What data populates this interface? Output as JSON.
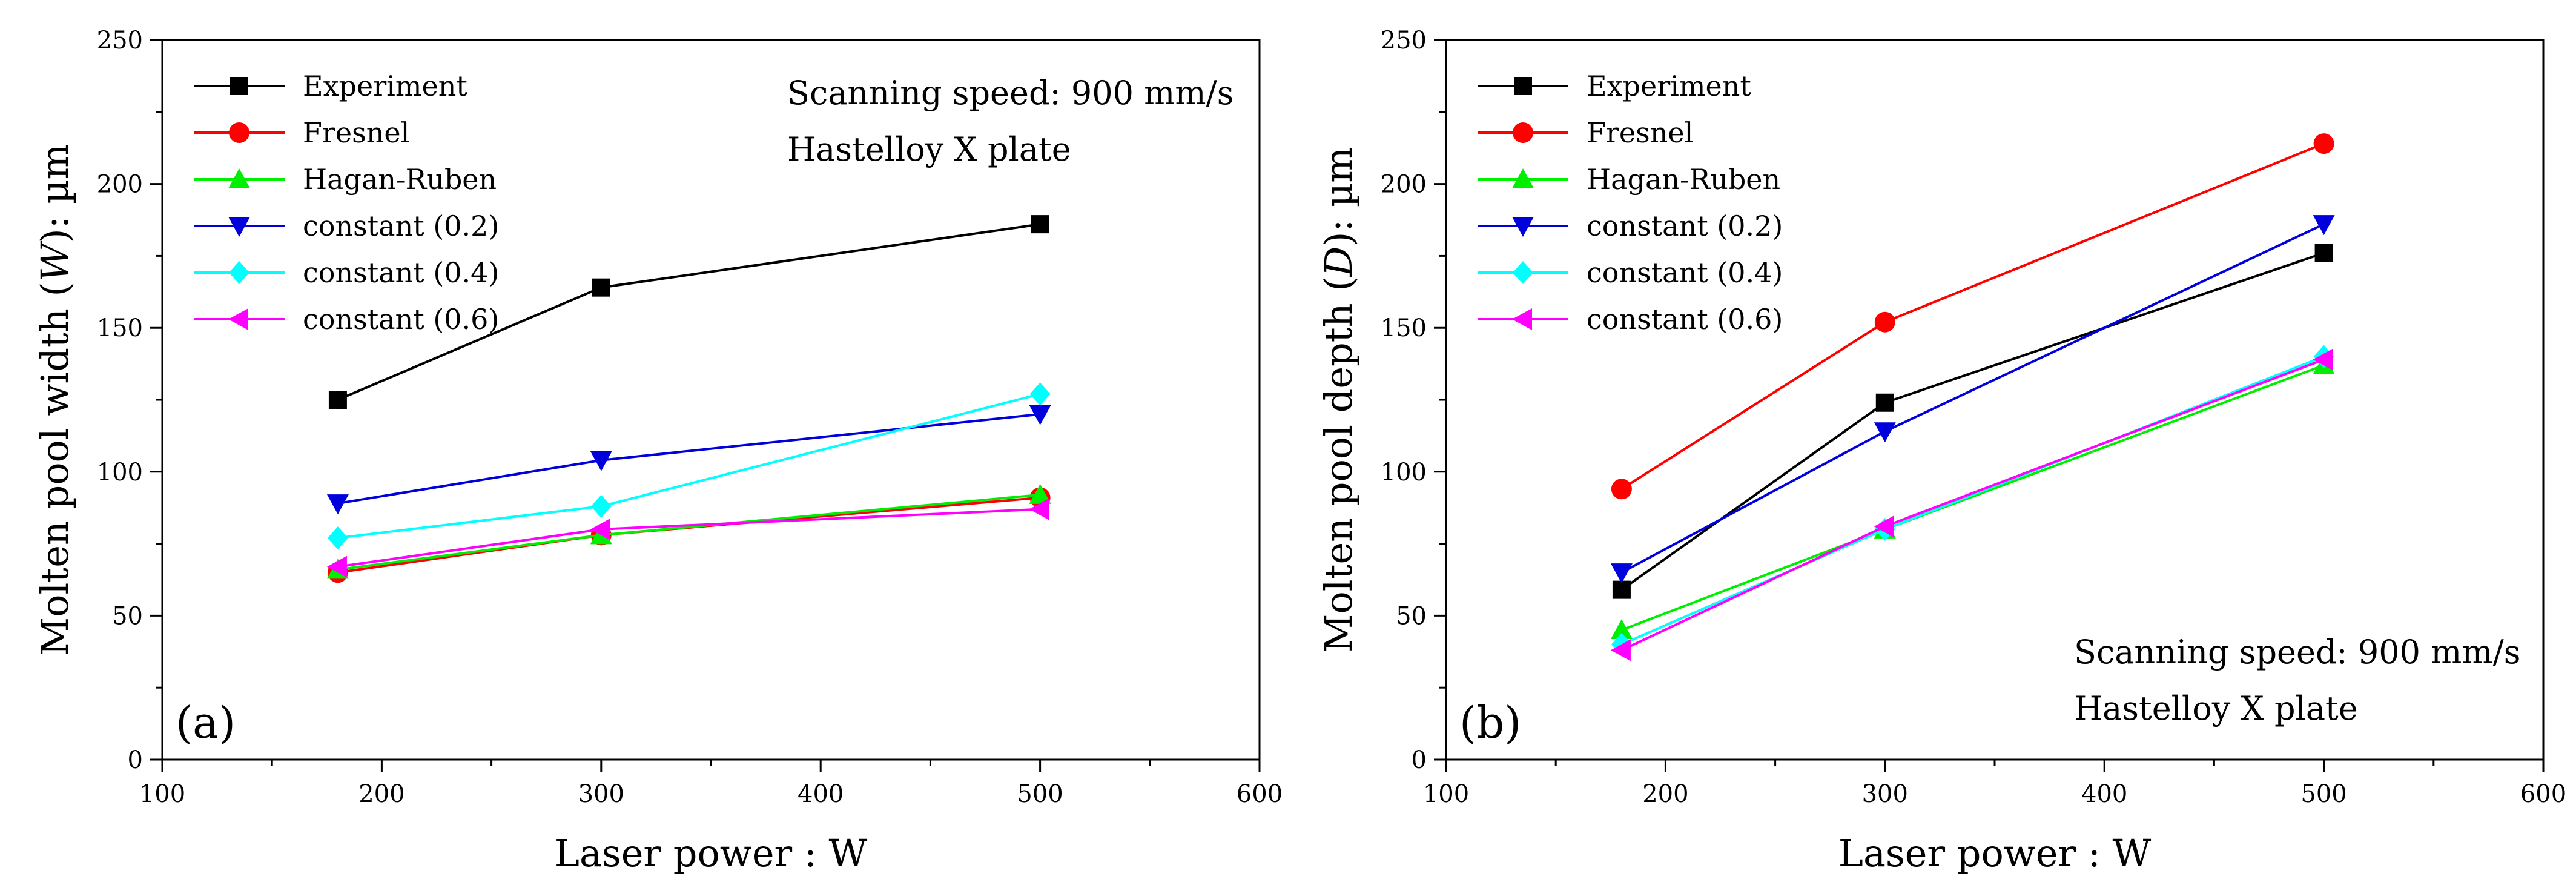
{
  "chart_data": [
    {
      "type": "line",
      "panel_label": "(a)",
      "xlabel": "Laser power : W",
      "ylabel_parts": [
        "Molten pool width (",
        "W",
        "): µm"
      ],
      "xlim": [
        100,
        600
      ],
      "ylim": [
        0,
        250
      ],
      "xticks": [
        100,
        200,
        300,
        400,
        500,
        600
      ],
      "yticks": [
        0,
        50,
        100,
        150,
        200,
        250
      ],
      "x": [
        180,
        300,
        500
      ],
      "annotation": [
        "Scanning speed: 900 mm/s",
        "Hastelloy X plate"
      ],
      "annotation_position": "top-right",
      "legend_position": "top-left",
      "series": [
        {
          "name": "Experiment",
          "color": "#000000",
          "marker": "square",
          "values": [
            125,
            164,
            186
          ]
        },
        {
          "name": "Fresnel",
          "color": "#ff0000",
          "marker": "circle",
          "values": [
            65,
            78,
            91
          ]
        },
        {
          "name": "Hagan-Ruben",
          "color": "#00ee00",
          "marker": "triangle-up",
          "values": [
            66,
            78,
            92
          ]
        },
        {
          "name": "constant (0.2)",
          "color": "#0000dd",
          "marker": "triangle-down",
          "values": [
            89,
            104,
            120
          ]
        },
        {
          "name": "constant (0.4)",
          "color": "#00ffff",
          "marker": "diamond",
          "values": [
            77,
            88,
            127
          ]
        },
        {
          "name": "constant (0.6)",
          "color": "#ff00ff",
          "marker": "triangle-left",
          "values": [
            67,
            80,
            87
          ]
        }
      ]
    },
    {
      "type": "line",
      "panel_label": "(b)",
      "xlabel": "Laser power : W",
      "ylabel_parts": [
        "Molten pool depth (",
        "D",
        "): µm"
      ],
      "xlim": [
        100,
        600
      ],
      "ylim": [
        0,
        250
      ],
      "xticks": [
        100,
        200,
        300,
        400,
        500,
        600
      ],
      "yticks": [
        0,
        50,
        100,
        150,
        200,
        250
      ],
      "x": [
        180,
        300,
        500
      ],
      "annotation": [
        "Scanning speed: 900 mm/s",
        "Hastelloy X plate"
      ],
      "annotation_position": "bottom-right",
      "legend_position": "top-left",
      "series": [
        {
          "name": "Experiment",
          "color": "#000000",
          "marker": "square",
          "values": [
            59,
            124,
            176
          ]
        },
        {
          "name": "Fresnel",
          "color": "#ff0000",
          "marker": "circle",
          "values": [
            94,
            152,
            214
          ]
        },
        {
          "name": "Hagan-Ruben",
          "color": "#00ee00",
          "marker": "triangle-up",
          "values": [
            45,
            80,
            137
          ]
        },
        {
          "name": "constant (0.2)",
          "color": "#0000dd",
          "marker": "triangle-down",
          "values": [
            65,
            114,
            186
          ]
        },
        {
          "name": "constant (0.4)",
          "color": "#00ffff",
          "marker": "diamond",
          "values": [
            40,
            80,
            140
          ]
        },
        {
          "name": "constant (0.6)",
          "color": "#ff00ff",
          "marker": "triangle-left",
          "values": [
            38,
            81,
            139
          ]
        }
      ]
    }
  ]
}
